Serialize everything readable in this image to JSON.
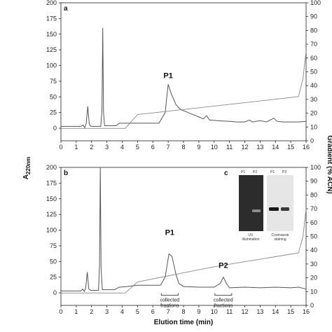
{
  "chart_data": [
    {
      "panel": "a",
      "type": "line",
      "xlabel": "",
      "xlim": [
        0,
        16
      ],
      "x_ticks": [
        "0",
        "1",
        "2",
        "3",
        "4",
        "5",
        "6",
        "7",
        "8",
        "9",
        "10",
        "11",
        "12",
        "13",
        "14",
        "15",
        "16"
      ],
      "ylim_left": [
        -20,
        200
      ],
      "y_ticks_left": [
        "0",
        "25",
        "50",
        "75",
        "100",
        "125",
        "150",
        "175",
        "200"
      ],
      "ylim_right": [
        0,
        100
      ],
      "y_ticks_right": [
        "0",
        "10",
        "20",
        "30",
        "40",
        "50",
        "60",
        "70",
        "80",
        "90",
        "100"
      ],
      "grid": false,
      "annotations": [
        {
          "text": "P1",
          "x": 7.0,
          "y": 80
        }
      ],
      "series": [
        {
          "axis": "left",
          "points": [
            [
              0,
              3
            ],
            [
              1.3,
              3
            ],
            [
              1.45,
              5
            ],
            [
              1.55,
              1
            ],
            [
              1.65,
              8
            ],
            [
              1.75,
              35
            ],
            [
              1.85,
              6
            ],
            [
              1.95,
              3
            ],
            [
              2.6,
              3
            ],
            [
              2.68,
              30
            ],
            [
              2.73,
              160
            ],
            [
              2.78,
              25
            ],
            [
              2.85,
              4
            ],
            [
              3.6,
              4
            ],
            [
              3.8,
              8
            ],
            [
              4.3,
              8
            ],
            [
              5.0,
              8
            ],
            [
              6.4,
              8
            ],
            [
              6.8,
              25
            ],
            [
              7.0,
              70
            ],
            [
              7.2,
              55
            ],
            [
              7.5,
              38
            ],
            [
              7.8,
              30
            ],
            [
              8.2,
              26
            ],
            [
              8.6,
              22
            ],
            [
              9.0,
              18
            ],
            [
              9.3,
              15
            ],
            [
              9.5,
              20
            ],
            [
              9.7,
              13
            ],
            [
              10.2,
              12
            ],
            [
              11,
              11
            ],
            [
              11.5,
              10
            ],
            [
              12,
              10
            ],
            [
              12.3,
              13
            ],
            [
              12.5,
              10
            ],
            [
              13,
              12
            ],
            [
              13.4,
              10
            ],
            [
              13.9,
              16
            ],
            [
              14.1,
              11
            ],
            [
              14.5,
              10
            ],
            [
              15,
              10
            ],
            [
              15.5,
              10
            ],
            [
              16,
              11
            ]
          ]
        },
        {
          "axis": "right",
          "points": [
            [
              0,
              9
            ],
            [
              4.2,
              9
            ],
            [
              5.0,
              19
            ],
            [
              15.5,
              32
            ],
            [
              15.8,
              45
            ],
            [
              16,
              65
            ]
          ]
        }
      ]
    },
    {
      "panel": "b",
      "type": "line",
      "xlabel": "Elution time (min)",
      "xlim": [
        0,
        16
      ],
      "x_ticks": [
        "0",
        "1",
        "2",
        "3",
        "4",
        "5",
        "6",
        "7",
        "8",
        "9",
        "10",
        "11",
        "12",
        "13",
        "14",
        "15",
        "16"
      ],
      "ylim_left": [
        -20,
        200
      ],
      "y_ticks_left": [
        "0",
        "25",
        "50",
        "75",
        "100",
        "125",
        "150",
        "175",
        "200"
      ],
      "ylim_right": [
        0,
        100
      ],
      "y_ticks_right": [
        "0",
        "10",
        "20",
        "30",
        "40",
        "50",
        "60",
        "70",
        "80",
        "90",
        "100"
      ],
      "grid": false,
      "annotations": [
        {
          "text": "P1",
          "x": 7.1,
          "y": 92
        },
        {
          "text": "P2",
          "x": 10.6,
          "y": 40
        },
        {
          "text": "collected\nfractions",
          "x": 7.1,
          "y": -14
        },
        {
          "text": "collected\nfractions",
          "x": 10.6,
          "y": -14
        }
      ],
      "series": [
        {
          "axis": "left",
          "points": [
            [
              0,
              3
            ],
            [
              1.3,
              3
            ],
            [
              1.42,
              6
            ],
            [
              1.52,
              2
            ],
            [
              1.62,
              8
            ],
            [
              1.72,
              33
            ],
            [
              1.82,
              6
            ],
            [
              1.95,
              4
            ],
            [
              2.45,
              4
            ],
            [
              2.52,
              45
            ],
            [
              2.57,
              200
            ],
            [
              2.62,
              40
            ],
            [
              2.7,
              5
            ],
            [
              3.5,
              5
            ],
            [
              3.8,
              9
            ],
            [
              4.3,
              10
            ],
            [
              5.0,
              12
            ],
            [
              6.5,
              12
            ],
            [
              6.8,
              25
            ],
            [
              7.05,
              62
            ],
            [
              7.25,
              58
            ],
            [
              7.5,
              30
            ],
            [
              7.7,
              15
            ],
            [
              8.0,
              10
            ],
            [
              9.0,
              9
            ],
            [
              10.0,
              9
            ],
            [
              10.4,
              15
            ],
            [
              10.6,
              25
            ],
            [
              10.8,
              15
            ],
            [
              11.0,
              8
            ],
            [
              12.0,
              9
            ],
            [
              13.0,
              8
            ],
            [
              14,
              9
            ],
            [
              15,
              8
            ],
            [
              15.5,
              9
            ],
            [
              16,
              6
            ]
          ]
        },
        {
          "axis": "right",
          "points": [
            [
              0,
              9
            ],
            [
              4.2,
              9
            ],
            [
              5.0,
              17
            ],
            [
              10.0,
              28
            ],
            [
              15.5,
              38
            ],
            [
              15.8,
              50
            ],
            [
              16,
              70
            ]
          ]
        }
      ]
    }
  ],
  "figure": {
    "y_left_label": "A",
    "y_left_label_sub": "220nm",
    "y_right_label": "Gradient (% ACN)",
    "panel_letters": [
      "a",
      "b",
      "c"
    ],
    "inset": {
      "left_lanes": [
        "P1",
        "P2"
      ],
      "right_lanes": [
        "P1",
        "P2"
      ],
      "left_caption_1": "UV",
      "left_caption_2": "illumination",
      "right_caption_1": "Coomassie",
      "right_caption_2": "staining"
    },
    "colors": {
      "trace": "#555555",
      "gradient": "#888888",
      "axis": "#222222",
      "gel_dark": "#2c2c2c",
      "gel_light": "#e6e6e6"
    }
  }
}
